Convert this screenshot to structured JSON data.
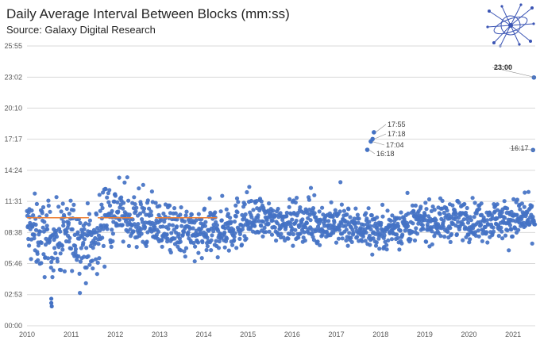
{
  "header": {
    "title": "Daily Average Interval Between Blocks (mm:ss)",
    "subtitle": "Source: Galaxy Digital Research"
  },
  "logo": {
    "icon": "galaxy-network-logo-icon",
    "color": "#3a54b4"
  },
  "chart_data": {
    "type": "scatter",
    "title": "Daily Average Interval Between Blocks (mm:ss)",
    "subtitle": "Source: Galaxy Digital Research",
    "xlabel": "",
    "ylabel": "",
    "x_ticks": [
      "2010",
      "2011",
      "2012",
      "2013",
      "2014",
      "2015",
      "2016",
      "2017",
      "2018",
      "2019",
      "2020",
      "2021"
    ],
    "y_ticks": [
      "00:00",
      "02:53",
      "05:46",
      "08:38",
      "11:31",
      "14:24",
      "17:17",
      "20:10",
      "23:02",
      "25:55"
    ],
    "ylim_minutes": [
      0,
      25.92
    ],
    "xlim": [
      "2010-01-01",
      "2021-06-30"
    ],
    "grid": "horizontal",
    "point_color": "#4472c4",
    "reference_line": {
      "color": "#ed7d31",
      "value": "10:00"
    },
    "series": [
      {
        "description_trend": [
          {
            "x": "2010.0",
            "y": "09:00"
          },
          {
            "x": "2010.5",
            "y": "07:50"
          },
          {
            "x": "2011.0",
            "y": "08:30"
          },
          {
            "x": "2011.5",
            "y": "07:30"
          },
          {
            "x": "2011.8",
            "y": "10:40"
          },
          {
            "x": "2012.0",
            "y": "10:30"
          },
          {
            "x": "2012.5",
            "y": "09:30"
          },
          {
            "x": "2013.0",
            "y": "09:20"
          },
          {
            "x": "2013.5",
            "y": "08:30"
          },
          {
            "x": "2014.0",
            "y": "08:20"
          },
          {
            "x": "2014.5",
            "y": "09:10"
          },
          {
            "x": "2015.0",
            "y": "09:45"
          },
          {
            "x": "2016.0",
            "y": "09:40"
          },
          {
            "x": "2017.0",
            "y": "09:20"
          },
          {
            "x": "2018.0",
            "y": "08:50"
          },
          {
            "x": "2019.0",
            "y": "09:40"
          },
          {
            "x": "2020.0",
            "y": "09:50"
          },
          {
            "x": "2021.0",
            "y": "09:50"
          },
          {
            "x": "2021.5",
            "y": "10:00"
          }
        ]
      }
    ],
    "annotations": [
      {
        "label": "17:55",
        "x": "2017.85",
        "y_minutes": 17.92
      },
      {
        "label": "17:18",
        "x": "2017.82",
        "y_minutes": 17.3
      },
      {
        "label": "17:04",
        "x": "2017.78",
        "y_minutes": 17.07
      },
      {
        "label": "16:18",
        "x": "2017.70",
        "y_minutes": 16.3
      },
      {
        "label": "16:17",
        "x": "2021.45",
        "y_minutes": 16.28
      },
      {
        "label": "23:00",
        "x": "2021.47",
        "y_minutes": 23.0,
        "bold": true
      }
    ]
  }
}
